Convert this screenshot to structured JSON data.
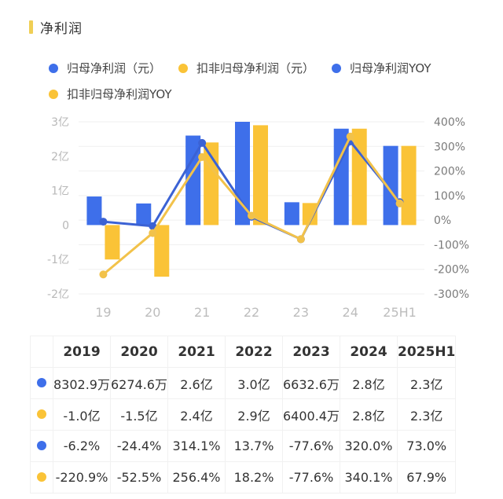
{
  "header": {
    "title": "净利润"
  },
  "colors": {
    "blue": "#3e6fea",
    "yellow": "#fac337",
    "blue_line": "#3b62d4",
    "yellow_line": "#f2c24a",
    "title_bar": "#f0cf55"
  },
  "legend": [
    {
      "label": "归母净利润（元）",
      "color": "#3e6fea",
      "icon": "circle-marker-icon"
    },
    {
      "label": "扣非归母净利润（元）",
      "color": "#fac337",
      "icon": "circle-marker-icon"
    },
    {
      "label": "归母净利润YOY",
      "color": "#3e6fea",
      "icon": "circle-marker-icon"
    },
    {
      "label": "扣非归母净利润YOY",
      "color": "#fac337",
      "icon": "circle-marker-icon"
    }
  ],
  "chart_data": {
    "type": "bar",
    "title": "净利润",
    "categories": [
      "19",
      "20",
      "21",
      "22",
      "23",
      "24",
      "25H1"
    ],
    "series": [
      {
        "name": "归母净利润（元）",
        "type": "bar",
        "axis": "left",
        "unit": "亿",
        "values": [
          0.83,
          0.627,
          2.6,
          3.0,
          0.663,
          2.8,
          2.3
        ]
      },
      {
        "name": "扣非归母净利润（元）",
        "type": "bar",
        "axis": "left",
        "unit": "亿",
        "values": [
          -1.0,
          -1.5,
          2.4,
          2.9,
          0.64,
          2.8,
          2.3
        ]
      },
      {
        "name": "归母净利润YOY",
        "type": "line",
        "axis": "right",
        "unit": "%",
        "values": [
          -6.2,
          -24.4,
          314.1,
          13.7,
          -77.6,
          320.0,
          73.0
        ]
      },
      {
        "name": "扣非归母净利润YOY",
        "type": "line",
        "axis": "right",
        "unit": "%",
        "values": [
          -220.9,
          -52.5,
          256.4,
          18.2,
          -77.6,
          340.1,
          67.9
        ]
      }
    ],
    "left_axis": {
      "ticks": [
        "3亿",
        "2亿",
        "1亿",
        "0",
        "-1亿",
        "-2亿"
      ],
      "tick_values": [
        3,
        2,
        1,
        0,
        -1,
        -2
      ],
      "ylim": [
        -2,
        3
      ]
    },
    "right_axis": {
      "ticks": [
        "400%",
        "300%",
        "200%",
        "100%",
        "0%",
        "-100%",
        "-200%",
        "-300%"
      ],
      "tick_values": [
        400,
        300,
        200,
        100,
        0,
        -100,
        -200,
        -300
      ],
      "ylim": [
        -300,
        400
      ]
    },
    "grid": true,
    "legend_position": "top"
  },
  "table": {
    "headers": [
      "2019",
      "2020",
      "2021",
      "2022",
      "2023",
      "2024",
      "2025H1"
    ],
    "rows": [
      {
        "color": "#3e6fea",
        "cells": [
          "8302.9万",
          "6274.6万",
          "2.6亿",
          "3.0亿",
          "6632.6万",
          "2.8亿",
          "2.3亿"
        ]
      },
      {
        "color": "#fac337",
        "cells": [
          "-1.0亿",
          "-1.5亿",
          "2.4亿",
          "2.9亿",
          "6400.4万",
          "2.8亿",
          "2.3亿"
        ]
      },
      {
        "color": "#3e6fea",
        "cells": [
          "-6.2%",
          "-24.4%",
          "314.1%",
          "13.7%",
          "-77.6%",
          "320.0%",
          "73.0%"
        ]
      },
      {
        "color": "#fac337",
        "cells": [
          "-220.9%",
          "-52.5%",
          "256.4%",
          "18.2%",
          "-77.6%",
          "340.1%",
          "67.9%"
        ]
      }
    ]
  }
}
